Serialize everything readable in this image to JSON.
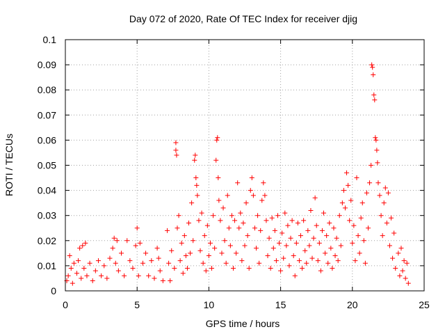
{
  "chart_data": {
    "type": "scatter",
    "title": "Day 072 of 2020, Rate Of TEC Index for receiver djig",
    "xlabel": "GPS time / hours",
    "ylabel": "ROTI / TECUs",
    "xlim": [
      0,
      25
    ],
    "ylim": [
      0,
      0.1
    ],
    "x_ticks": [
      0,
      5,
      10,
      15,
      20,
      25
    ],
    "x_tick_labels": [
      "0",
      "5",
      "10",
      "15",
      "20",
      "25"
    ],
    "y_ticks": [
      0,
      0.01,
      0.02,
      0.03,
      0.04,
      0.05,
      0.06,
      0.07,
      0.08,
      0.09,
      0.1
    ],
    "y_tick_labels": [
      "0",
      "0.01",
      "0.02",
      "0.03",
      "0.04",
      "0.05",
      "0.06",
      "0.07",
      "0.08",
      "0.09",
      "0.1"
    ],
    "grid": true,
    "marker": "plus",
    "color": "#ff0000",
    "series": [
      {
        "points": [
          [
            0.1,
            0.004
          ],
          [
            0.2,
            0.006
          ],
          [
            0.3,
            0.014
          ],
          [
            0.4,
            0.009
          ],
          [
            0.5,
            0.003
          ],
          [
            0.6,
            0.011
          ],
          [
            0.8,
            0.007
          ],
          [
            0.9,
            0.012
          ],
          [
            1.0,
            0.017
          ],
          [
            1.1,
            0.005
          ],
          [
            1.2,
            0.018
          ],
          [
            1.3,
            0.009
          ],
          [
            1.4,
            0.019
          ],
          [
            1.5,
            0.006
          ],
          [
            1.7,
            0.011
          ],
          [
            1.9,
            0.004
          ],
          [
            2.1,
            0.008
          ],
          [
            2.3,
            0.012
          ],
          [
            2.5,
            0.006
          ],
          [
            2.7,
            0.01
          ],
          [
            2.9,
            0.005
          ],
          [
            3.1,
            0.013
          ],
          [
            3.3,
            0.017
          ],
          [
            3.4,
            0.021
          ],
          [
            3.5,
            0.011
          ],
          [
            3.6,
            0.02
          ],
          [
            3.7,
            0.008
          ],
          [
            3.9,
            0.015
          ],
          [
            4.1,
            0.006
          ],
          [
            4.3,
            0.02
          ],
          [
            4.5,
            0.012
          ],
          [
            4.7,
            0.009
          ],
          [
            4.9,
            0.018
          ],
          [
            5.0,
            0.025
          ],
          [
            5.1,
            0.006
          ],
          [
            5.2,
            0.019
          ],
          [
            5.4,
            0.011
          ],
          [
            5.6,
            0.015
          ],
          [
            5.8,
            0.006
          ],
          [
            6.0,
            0.012
          ],
          [
            6.2,
            0.005
          ],
          [
            6.4,
            0.017
          ],
          [
            6.5,
            0.013
          ],
          [
            6.6,
            0.008
          ],
          [
            6.8,
            0.004
          ],
          [
            7.1,
            0.024
          ],
          [
            7.2,
            0.011
          ],
          [
            7.3,
            0.004
          ],
          [
            7.4,
            0.016
          ],
          [
            7.6,
            0.009
          ],
          [
            7.7,
            0.059
          ],
          [
            7.7,
            0.056
          ],
          [
            7.75,
            0.054
          ],
          [
            7.8,
            0.025
          ],
          [
            7.9,
            0.03
          ],
          [
            8.0,
            0.012
          ],
          [
            8.1,
            0.019
          ],
          [
            8.2,
            0.007
          ],
          [
            8.3,
            0.022
          ],
          [
            8.4,
            0.014
          ],
          [
            8.5,
            0.009
          ],
          [
            8.6,
            0.027
          ],
          [
            8.7,
            0.015
          ],
          [
            8.8,
            0.035
          ],
          [
            8.9,
            0.02
          ],
          [
            9.0,
            0.052
          ],
          [
            9.05,
            0.054
          ],
          [
            9.1,
            0.045
          ],
          [
            9.15,
            0.042
          ],
          [
            9.2,
            0.038
          ],
          [
            9.3,
            0.028
          ],
          [
            9.4,
            0.016
          ],
          [
            9.5,
            0.031
          ],
          [
            9.6,
            0.011
          ],
          [
            9.7,
            0.022
          ],
          [
            9.8,
            0.008
          ],
          [
            9.9,
            0.026
          ],
          [
            10.0,
            0.014
          ],
          [
            10.1,
            0.019
          ],
          [
            10.2,
            0.009
          ],
          [
            10.3,
            0.03
          ],
          [
            10.4,
            0.017
          ],
          [
            10.5,
            0.052
          ],
          [
            10.55,
            0.06
          ],
          [
            10.6,
            0.061
          ],
          [
            10.65,
            0.045
          ],
          [
            10.7,
            0.036
          ],
          [
            10.8,
            0.028
          ],
          [
            10.9,
            0.015
          ],
          [
            11.0,
            0.033
          ],
          [
            11.1,
            0.02
          ],
          [
            11.2,
            0.011
          ],
          [
            11.3,
            0.038
          ],
          [
            11.4,
            0.025
          ],
          [
            11.5,
            0.018
          ],
          [
            11.6,
            0.03
          ],
          [
            11.7,
            0.009
          ],
          [
            11.8,
            0.028
          ],
          [
            11.9,
            0.015
          ],
          [
            12.0,
            0.043
          ],
          [
            12.1,
            0.025
          ],
          [
            12.2,
            0.031
          ],
          [
            12.3,
            0.012
          ],
          [
            12.4,
            0.027
          ],
          [
            12.5,
            0.018
          ],
          [
            12.6,
            0.035
          ],
          [
            12.7,
            0.022
          ],
          [
            12.8,
            0.009
          ],
          [
            12.9,
            0.04
          ],
          [
            13.0,
            0.045
          ],
          [
            13.1,
            0.038
          ],
          [
            13.2,
            0.025
          ],
          [
            13.3,
            0.017
          ],
          [
            13.4,
            0.03
          ],
          [
            13.5,
            0.011
          ],
          [
            13.6,
            0.024
          ],
          [
            13.7,
            0.036
          ],
          [
            13.8,
            0.043
          ],
          [
            13.9,
            0.038
          ],
          [
            14.0,
            0.028
          ],
          [
            14.1,
            0.014
          ],
          [
            14.2,
            0.021
          ],
          [
            14.3,
            0.009
          ],
          [
            14.4,
            0.029
          ],
          [
            14.5,
            0.017
          ],
          [
            14.6,
            0.024
          ],
          [
            14.7,
            0.012
          ],
          [
            14.8,
            0.03
          ],
          [
            14.9,
            0.019
          ],
          [
            15.0,
            0.008
          ],
          [
            15.1,
            0.023
          ],
          [
            15.2,
            0.013
          ],
          [
            15.3,
            0.031
          ],
          [
            15.4,
            0.018
          ],
          [
            15.5,
            0.026
          ],
          [
            15.6,
            0.01
          ],
          [
            15.7,
            0.021
          ],
          [
            15.8,
            0.028
          ],
          [
            15.9,
            0.014
          ],
          [
            16.0,
            0.006
          ],
          [
            16.1,
            0.019
          ],
          [
            16.2,
            0.027
          ],
          [
            16.3,
            0.012
          ],
          [
            16.4,
            0.022
          ],
          [
            16.5,
            0.009
          ],
          [
            16.6,
            0.028
          ],
          [
            16.7,
            0.016
          ],
          [
            16.8,
            0.011
          ],
          [
            16.9,
            0.024
          ],
          [
            17.0,
            0.018
          ],
          [
            17.1,
            0.032
          ],
          [
            17.2,
            0.013
          ],
          [
            17.3,
            0.021
          ],
          [
            17.4,
            0.037
          ],
          [
            17.5,
            0.026
          ],
          [
            17.6,
            0.012
          ],
          [
            17.7,
            0.019
          ],
          [
            17.8,
            0.008
          ],
          [
            17.9,
            0.024
          ],
          [
            18.0,
            0.031
          ],
          [
            18.1,
            0.015
          ],
          [
            18.2,
            0.022
          ],
          [
            18.3,
            0.011
          ],
          [
            18.4,
            0.027
          ],
          [
            18.5,
            0.017
          ],
          [
            18.6,
            0.009
          ],
          [
            18.7,
            0.025
          ],
          [
            18.8,
            0.014
          ],
          [
            18.9,
            0.021
          ],
          [
            19.0,
            0.012
          ],
          [
            19.1,
            0.03
          ],
          [
            19.2,
            0.018
          ],
          [
            19.3,
            0.035
          ],
          [
            19.4,
            0.04
          ],
          [
            19.5,
            0.033
          ],
          [
            19.6,
            0.047
          ],
          [
            19.7,
            0.042
          ],
          [
            19.8,
            0.028
          ],
          [
            19.9,
            0.036
          ],
          [
            20.0,
            0.019
          ],
          [
            20.1,
            0.026
          ],
          [
            20.2,
            0.012
          ],
          [
            20.3,
            0.045
          ],
          [
            20.4,
            0.022
          ],
          [
            20.5,
            0.015
          ],
          [
            20.6,
            0.029
          ],
          [
            20.7,
            0.035
          ],
          [
            20.8,
            0.02
          ],
          [
            20.9,
            0.011
          ],
          [
            21.0,
            0.039
          ],
          [
            21.1,
            0.025
          ],
          [
            21.2,
            0.043
          ],
          [
            21.3,
            0.05
          ],
          [
            21.35,
            0.09
          ],
          [
            21.4,
            0.089
          ],
          [
            21.45,
            0.086
          ],
          [
            21.5,
            0.078
          ],
          [
            21.55,
            0.076
          ],
          [
            21.6,
            0.061
          ],
          [
            21.65,
            0.06
          ],
          [
            21.7,
            0.056
          ],
          [
            21.75,
            0.051
          ],
          [
            21.8,
            0.043
          ],
          [
            21.9,
            0.038
          ],
          [
            22.0,
            0.03
          ],
          [
            22.1,
            0.022
          ],
          [
            22.2,
            0.035
          ],
          [
            22.3,
            0.041
          ],
          [
            22.4,
            0.027
          ],
          [
            22.5,
            0.039
          ],
          [
            22.6,
            0.018
          ],
          [
            22.7,
            0.029
          ],
          [
            22.8,
            0.013
          ],
          [
            22.9,
            0.023
          ],
          [
            23.0,
            0.009
          ],
          [
            23.2,
            0.015
          ],
          [
            23.3,
            0.006
          ],
          [
            23.4,
            0.017
          ],
          [
            23.5,
            0.008
          ],
          [
            23.6,
            0.012
          ],
          [
            23.7,
            0.005
          ],
          [
            23.8,
            0.011
          ],
          [
            23.9,
            0.003
          ]
        ]
      }
    ]
  }
}
